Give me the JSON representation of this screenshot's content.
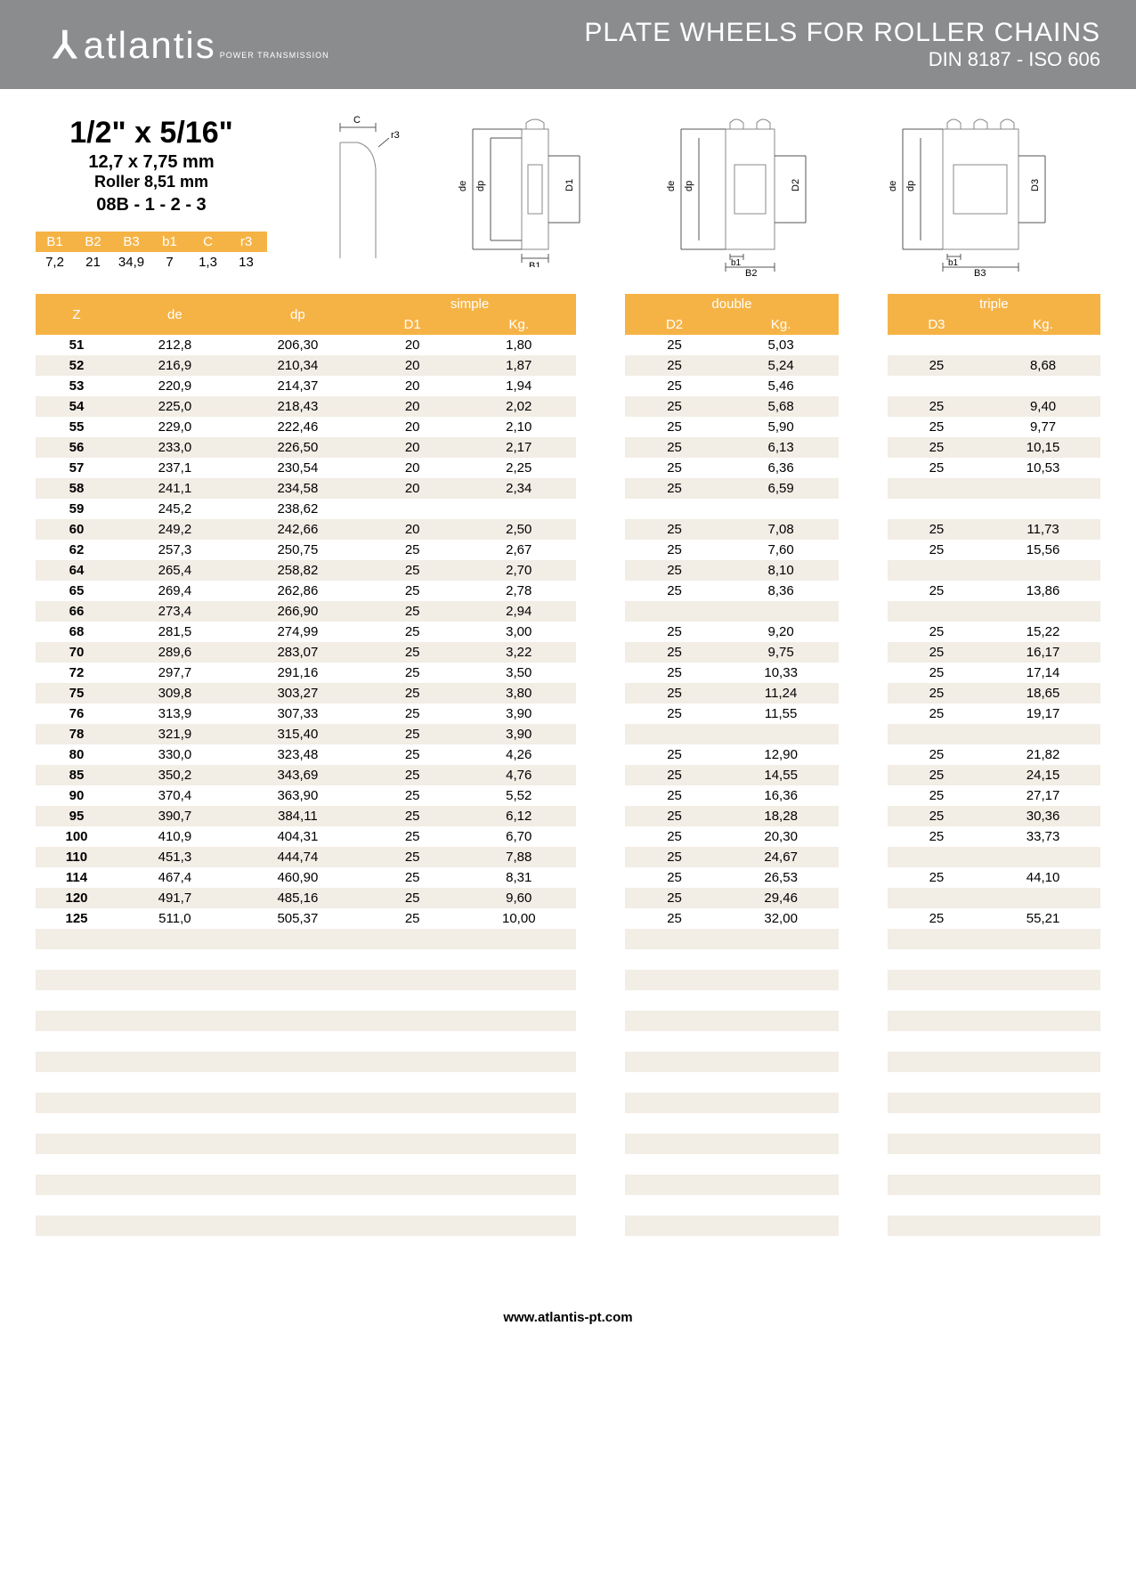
{
  "header": {
    "logo": "atlantis",
    "logo_sub": "POWER TRANSMISSION",
    "title_line1": "PLATE WHEELS FOR ROLLER CHAINS",
    "title_line2": "DIN 8187 - ISO 606"
  },
  "spec": {
    "size": "1/2\" x 5/16\"",
    "mm": "12,7 x 7,75 mm",
    "roller": "Roller 8,51 mm",
    "code": "08B - 1 - 2 - 3"
  },
  "small_table": {
    "headers": [
      "B1",
      "B2",
      "B3",
      "b1",
      "C",
      "r3"
    ],
    "values": [
      "7,2",
      "21",
      "34,9",
      "7",
      "1,3",
      "13"
    ]
  },
  "main_headers": {
    "z": "Z",
    "de": "de",
    "dp": "dp",
    "simple": "simple",
    "d1": "D1",
    "kg1": "Kg.",
    "double": "double",
    "d2": "D2",
    "kg2": "Kg.",
    "triple": "triple",
    "d3": "D3",
    "kg3": "Kg."
  },
  "rows": [
    {
      "z": "51",
      "de": "212,8",
      "dp": "206,30",
      "d1": "20",
      "kg1": "1,80",
      "d2": "25",
      "kg2": "5,03",
      "d3": "",
      "kg3": ""
    },
    {
      "z": "52",
      "de": "216,9",
      "dp": "210,34",
      "d1": "20",
      "kg1": "1,87",
      "d2": "25",
      "kg2": "5,24",
      "d3": "25",
      "kg3": "8,68"
    },
    {
      "z": "53",
      "de": "220,9",
      "dp": "214,37",
      "d1": "20",
      "kg1": "1,94",
      "d2": "25",
      "kg2": "5,46",
      "d3": "",
      "kg3": ""
    },
    {
      "z": "54",
      "de": "225,0",
      "dp": "218,43",
      "d1": "20",
      "kg1": "2,02",
      "d2": "25",
      "kg2": "5,68",
      "d3": "25",
      "kg3": "9,40"
    },
    {
      "z": "55",
      "de": "229,0",
      "dp": "222,46",
      "d1": "20",
      "kg1": "2,10",
      "d2": "25",
      "kg2": "5,90",
      "d3": "25",
      "kg3": "9,77"
    },
    {
      "z": "56",
      "de": "233,0",
      "dp": "226,50",
      "d1": "20",
      "kg1": "2,17",
      "d2": "25",
      "kg2": "6,13",
      "d3": "25",
      "kg3": "10,15"
    },
    {
      "z": "57",
      "de": "237,1",
      "dp": "230,54",
      "d1": "20",
      "kg1": "2,25",
      "d2": "25",
      "kg2": "6,36",
      "d3": "25",
      "kg3": "10,53"
    },
    {
      "z": "58",
      "de": "241,1",
      "dp": "234,58",
      "d1": "20",
      "kg1": "2,34",
      "d2": "25",
      "kg2": "6,59",
      "d3": "",
      "kg3": ""
    },
    {
      "z": "59",
      "de": "245,2",
      "dp": "238,62",
      "d1": "",
      "kg1": "",
      "d2": "",
      "kg2": "",
      "d3": "",
      "kg3": ""
    },
    {
      "z": "60",
      "de": "249,2",
      "dp": "242,66",
      "d1": "20",
      "kg1": "2,50",
      "d2": "25",
      "kg2": "7,08",
      "d3": "25",
      "kg3": "11,73"
    },
    {
      "z": "62",
      "de": "257,3",
      "dp": "250,75",
      "d1": "25",
      "kg1": "2,67",
      "d2": "25",
      "kg2": "7,60",
      "d3": "25",
      "kg3": "15,56"
    },
    {
      "z": "64",
      "de": "265,4",
      "dp": "258,82",
      "d1": "25",
      "kg1": "2,70",
      "d2": "25",
      "kg2": "8,10",
      "d3": "",
      "kg3": ""
    },
    {
      "z": "65",
      "de": "269,4",
      "dp": "262,86",
      "d1": "25",
      "kg1": "2,78",
      "d2": "25",
      "kg2": "8,36",
      "d3": "25",
      "kg3": "13,86"
    },
    {
      "z": "66",
      "de": "273,4",
      "dp": "266,90",
      "d1": "25",
      "kg1": "2,94",
      "d2": "",
      "kg2": "",
      "d3": "",
      "kg3": ""
    },
    {
      "z": "68",
      "de": "281,5",
      "dp": "274,99",
      "d1": "25",
      "kg1": "3,00",
      "d2": "25",
      "kg2": "9,20",
      "d3": "25",
      "kg3": "15,22"
    },
    {
      "z": "70",
      "de": "289,6",
      "dp": "283,07",
      "d1": "25",
      "kg1": "3,22",
      "d2": "25",
      "kg2": "9,75",
      "d3": "25",
      "kg3": "16,17"
    },
    {
      "z": "72",
      "de": "297,7",
      "dp": "291,16",
      "d1": "25",
      "kg1": "3,50",
      "d2": "25",
      "kg2": "10,33",
      "d3": "25",
      "kg3": "17,14"
    },
    {
      "z": "75",
      "de": "309,8",
      "dp": "303,27",
      "d1": "25",
      "kg1": "3,80",
      "d2": "25",
      "kg2": "11,24",
      "d3": "25",
      "kg3": "18,65"
    },
    {
      "z": "76",
      "de": "313,9",
      "dp": "307,33",
      "d1": "25",
      "kg1": "3,90",
      "d2": "25",
      "kg2": "11,55",
      "d3": "25",
      "kg3": "19,17"
    },
    {
      "z": "78",
      "de": "321,9",
      "dp": "315,40",
      "d1": "25",
      "kg1": "3,90",
      "d2": "",
      "kg2": "",
      "d3": "",
      "kg3": ""
    },
    {
      "z": "80",
      "de": "330,0",
      "dp": "323,48",
      "d1": "25",
      "kg1": "4,26",
      "d2": "25",
      "kg2": "12,90",
      "d3": "25",
      "kg3": "21,82"
    },
    {
      "z": "85",
      "de": "350,2",
      "dp": "343,69",
      "d1": "25",
      "kg1": "4,76",
      "d2": "25",
      "kg2": "14,55",
      "d3": "25",
      "kg3": "24,15"
    },
    {
      "z": "90",
      "de": "370,4",
      "dp": "363,90",
      "d1": "25",
      "kg1": "5,52",
      "d2": "25",
      "kg2": "16,36",
      "d3": "25",
      "kg3": "27,17"
    },
    {
      "z": "95",
      "de": "390,7",
      "dp": "384,11",
      "d1": "25",
      "kg1": "6,12",
      "d2": "25",
      "kg2": "18,28",
      "d3": "25",
      "kg3": "30,36"
    },
    {
      "z": "100",
      "de": "410,9",
      "dp": "404,31",
      "d1": "25",
      "kg1": "6,70",
      "d2": "25",
      "kg2": "20,30",
      "d3": "25",
      "kg3": "33,73"
    },
    {
      "z": "110",
      "de": "451,3",
      "dp": "444,74",
      "d1": "25",
      "kg1": "7,88",
      "d2": "25",
      "kg2": "24,67",
      "d3": "",
      "kg3": ""
    },
    {
      "z": "114",
      "de": "467,4",
      "dp": "460,90",
      "d1": "25",
      "kg1": "8,31",
      "d2": "25",
      "kg2": "26,53",
      "d3": "25",
      "kg3": "44,10"
    },
    {
      "z": "120",
      "de": "491,7",
      "dp": "485,16",
      "d1": "25",
      "kg1": "9,60",
      "d2": "25",
      "kg2": "29,46",
      "d3": "",
      "kg3": ""
    },
    {
      "z": "125",
      "de": "511,0",
      "dp": "505,37",
      "d1": "25",
      "kg1": "10,00",
      "d2": "25",
      "kg2": "32,00",
      "d3": "25",
      "kg3": "55,21"
    }
  ],
  "empty_rows": 16,
  "footer": "www.atlantis-pt.com",
  "colors": {
    "header_bg": "#8b8c8e",
    "table_header_bg": "#f6b345",
    "stripe": "#f2ede5",
    "text": "#000000"
  },
  "diagram_labels": {
    "c": "C",
    "r3": "r3",
    "de": "de",
    "dp": "dp",
    "d1": "D1",
    "d2": "D2",
    "d3": "D3",
    "b1u": "B1",
    "b1": "b1",
    "b2u": "B2",
    "b3u": "B3"
  }
}
